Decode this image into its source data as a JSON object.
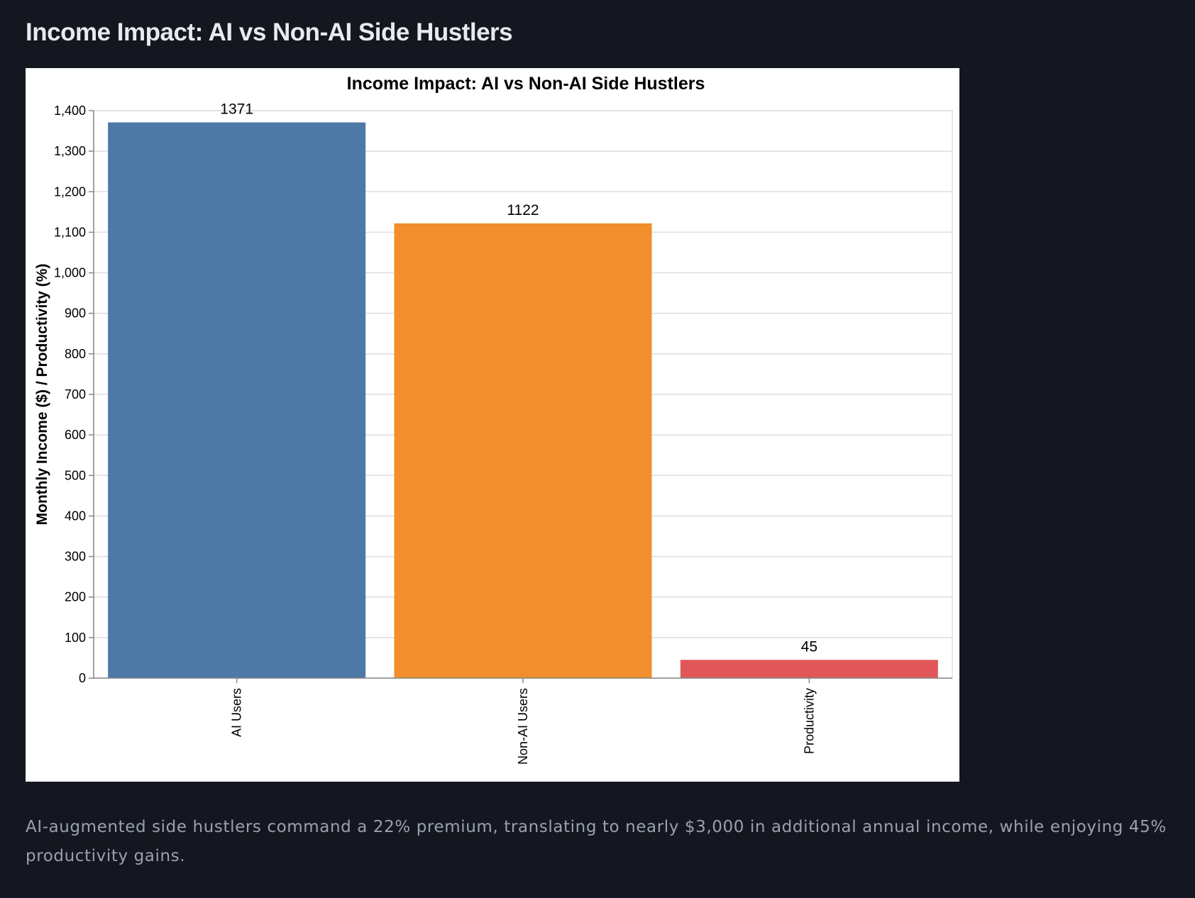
{
  "page": {
    "heading": "Income Impact: AI vs Non-AI Side Hustlers",
    "caption": "AI-augmented side hustlers command a 22% premium, translating to nearly $3,000 in additional annual income, while enjoying 45% productivity gains."
  },
  "chart_data": {
    "type": "bar",
    "title": "Income Impact: AI vs Non-AI Side Hustlers",
    "xlabel": "",
    "ylabel": "Monthly Income ($) / Productivity (%)",
    "categories": [
      "AI Users",
      "Non-AI Users",
      "Productivity"
    ],
    "values": [
      1371,
      1122,
      45
    ],
    "data_labels": [
      "1371",
      "1122",
      "45"
    ],
    "colors": [
      "#4e79a7",
      "#f28e2b",
      "#e15759"
    ],
    "ylim": [
      0,
      1400
    ],
    "yticks": [
      0,
      100,
      200,
      300,
      400,
      500,
      600,
      700,
      800,
      900,
      1000,
      1100,
      1200,
      1300,
      1400
    ],
    "ytick_labels": [
      "0",
      "100",
      "200",
      "300",
      "400",
      "500",
      "600",
      "700",
      "800",
      "900",
      "1,000",
      "1,100",
      "1,200",
      "1,300",
      "1,400"
    ],
    "grid": true
  }
}
